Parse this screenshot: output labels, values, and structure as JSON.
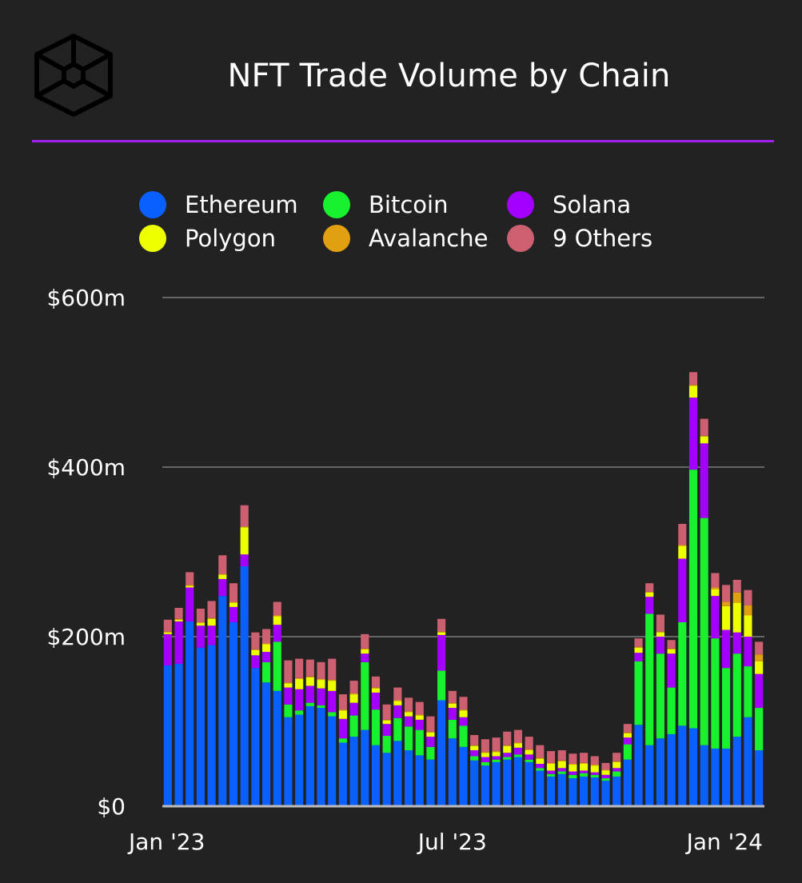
{
  "header": {
    "logo_name": "the-block-cube-logo",
    "title": "NFT Trade Volume by Chain"
  },
  "colors": {
    "background": "#222222",
    "accent": "#a020f0",
    "grid": "#666666",
    "axis": "#bbbbbb"
  },
  "chart_data": {
    "type": "bar",
    "stacked": true,
    "title": "NFT Trade Volume by Chain",
    "xlabel": "",
    "ylabel": "",
    "ylim": [
      0,
      600
    ],
    "y_ticks": [
      0,
      200,
      400,
      600
    ],
    "y_tick_labels": [
      "$0",
      "$200m",
      "$400m",
      "$600m"
    ],
    "x_tick_labels": [
      {
        "label": "Jan '23",
        "index": 0
      },
      {
        "label": "Jul '23",
        "index": 26
      },
      {
        "label": "Jan '24",
        "index": 52
      }
    ],
    "grid": true,
    "legend_position": "top",
    "series": [
      {
        "name": "Ethereum",
        "color": "#0a5fff",
        "values": [
          166,
          168,
          218,
          187,
          190,
          248,
          217,
          283,
          163,
          146,
          136,
          105,
          108,
          118,
          116,
          106,
          75,
          82,
          90,
          72,
          63,
          77,
          66,
          60,
          55,
          125,
          80,
          70,
          54,
          48,
          52,
          55,
          58,
          52,
          42,
          35,
          38,
          33,
          35,
          34,
          30,
          35,
          55,
          96,
          72,
          80,
          85,
          95,
          92,
          72,
          68,
          68,
          82,
          105,
          66
        ]
      },
      {
        "name": "Bitcoin",
        "color": "#18f22e",
        "values": [
          0,
          0,
          0,
          0,
          0,
          0,
          0,
          0,
          0,
          24,
          58,
          15,
          5,
          4,
          3,
          5,
          5,
          25,
          80,
          42,
          20,
          27,
          28,
          30,
          15,
          35,
          22,
          25,
          5,
          4,
          3,
          3,
          3,
          3,
          3,
          3,
          3,
          4,
          4,
          3,
          3,
          6,
          18,
          75,
          155,
          100,
          55,
          122,
          305,
          268,
          130,
          95,
          98,
          60,
          50
        ]
      },
      {
        "name": "Solana",
        "color": "#a400ff",
        "values": [
          37,
          50,
          40,
          26,
          23,
          20,
          18,
          14,
          15,
          12,
          20,
          20,
          25,
          20,
          20,
          25,
          23,
          15,
          10,
          20,
          14,
          15,
          12,
          12,
          12,
          42,
          14,
          10,
          7,
          6,
          4,
          5,
          8,
          6,
          5,
          4,
          4,
          4,
          3,
          3,
          4,
          4,
          8,
          10,
          20,
          20,
          40,
          75,
          85,
          88,
          50,
          45,
          25,
          35,
          40
        ]
      },
      {
        "name": "Polygon",
        "color": "#eeff00",
        "values": [
          2,
          2,
          2,
          3,
          8,
          5,
          5,
          32,
          6,
          9,
          10,
          5,
          12,
          10,
          10,
          12,
          10,
          10,
          5,
          5,
          4,
          5,
          5,
          5,
          5,
          3,
          5,
          8,
          5,
          5,
          5,
          8,
          5,
          5,
          6,
          8,
          8,
          8,
          8,
          8,
          5,
          7,
          5,
          6,
          5,
          5,
          5,
          15,
          14,
          8,
          8,
          28,
          35,
          25,
          15
        ]
      },
      {
        "name": "Avalanche",
        "color": "#e0a010",
        "values": [
          1,
          1,
          1,
          1,
          1,
          1,
          1,
          1,
          1,
          1,
          1,
          1,
          1,
          1,
          1,
          1,
          1,
          1,
          1,
          1,
          1,
          1,
          1,
          1,
          1,
          1,
          1,
          1,
          1,
          1,
          1,
          1,
          1,
          1,
          1,
          1,
          1,
          1,
          1,
          1,
          1,
          1,
          1,
          1,
          1,
          1,
          1,
          1,
          1,
          1,
          2,
          5,
          12,
          12,
          8
        ]
      },
      {
        "name": "9 Others",
        "color": "#cc6070",
        "values": [
          14,
          13,
          15,
          16,
          20,
          22,
          22,
          25,
          20,
          17,
          16,
          26,
          23,
          20,
          20,
          25,
          18,
          15,
          17,
          13,
          18,
          15,
          16,
          15,
          18,
          15,
          14,
          15,
          12,
          15,
          16,
          16,
          15,
          15,
          15,
          14,
          12,
          12,
          12,
          10,
          8,
          10,
          10,
          10,
          10,
          20,
          10,
          25,
          15,
          20,
          17,
          20,
          15,
          18,
          15
        ]
      }
    ]
  }
}
